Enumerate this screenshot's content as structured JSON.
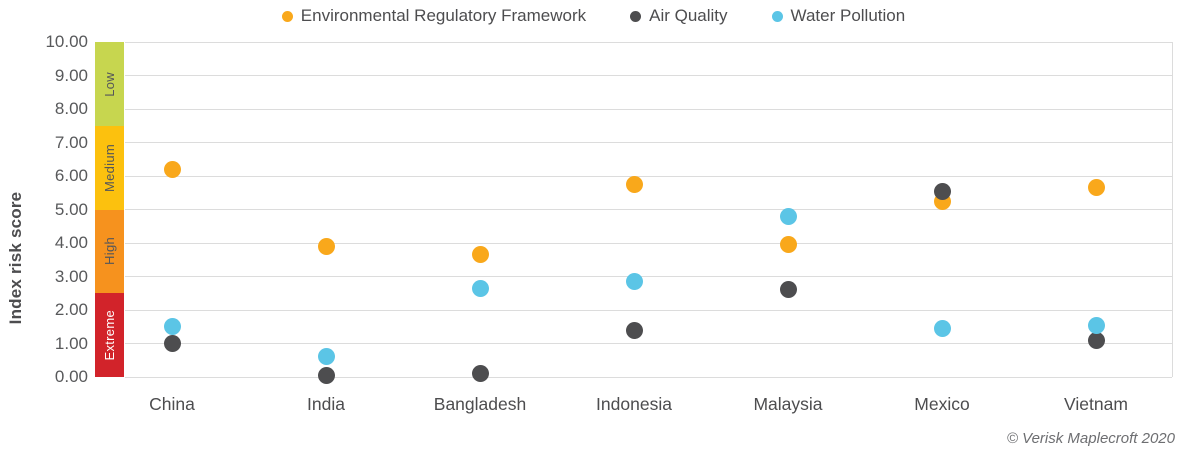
{
  "chart_data": {
    "type": "scatter",
    "ylabel": "Index risk score",
    "ylim": [
      0,
      10
    ],
    "y_ticks": [
      "10.00",
      "9.00",
      "8.00",
      "7.00",
      "6.00",
      "5.00",
      "4.00",
      "3.00",
      "2.00",
      "1.00",
      "0.00"
    ],
    "categories": [
      "China",
      "India",
      "Bangladesh",
      "Indonesia",
      "Malaysia",
      "Mexico",
      "Vietnam"
    ],
    "series": [
      {
        "name": "Environmental Regulatory Framework",
        "color": "#F9A81B",
        "values": [
          6.2,
          3.9,
          3.65,
          5.75,
          3.95,
          5.25,
          5.65
        ]
      },
      {
        "name": "Air Quality",
        "color": "#4D4D4F",
        "values": [
          1.0,
          0.05,
          0.1,
          1.4,
          2.6,
          5.55,
          1.1
        ]
      },
      {
        "name": "Water Pollution",
        "color": "#5BC5E6",
        "values": [
          1.5,
          0.6,
          2.65,
          2.85,
          4.8,
          1.45,
          1.55
        ]
      }
    ],
    "bands": [
      {
        "label": "Low",
        "from": 7.5,
        "to": 10,
        "color": "#C7D64F",
        "text_color": "#54565A"
      },
      {
        "label": "Medium",
        "from": 5,
        "to": 7.5,
        "color": "#FCC10E",
        "text_color": "#54565A"
      },
      {
        "label": "High",
        "from": 2.5,
        "to": 5,
        "color": "#F6921E",
        "text_color": "#54565A"
      },
      {
        "label": "Extreme",
        "from": 0,
        "to": 2.5,
        "color": "#D2232A",
        "text_color": "#FFFFFF"
      }
    ],
    "grid": true,
    "legend_position": "top"
  },
  "colors": {
    "grid": "#DCDCDC",
    "tick_text": "#58595B",
    "legend_text": "#4D4D4F"
  },
  "attribution": "© Verisk Maplecroft 2020"
}
